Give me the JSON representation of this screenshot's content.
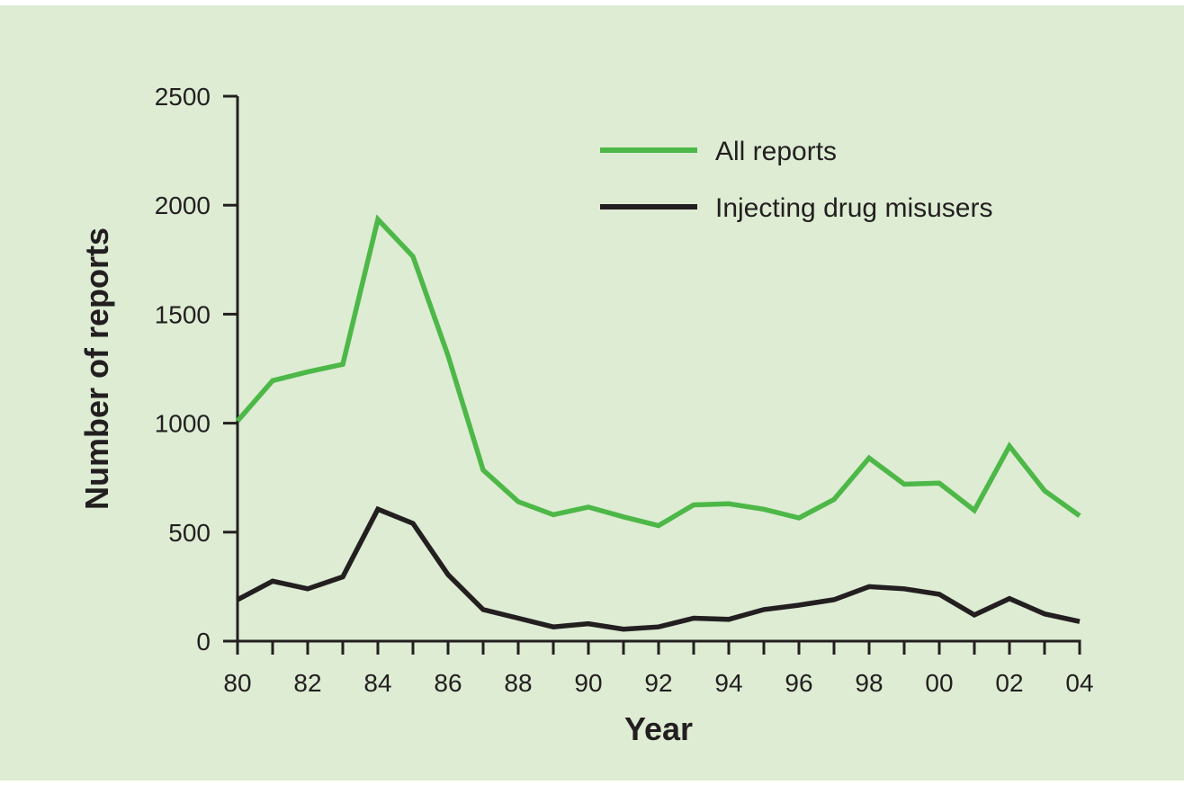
{
  "chart_data": {
    "type": "line",
    "xlabel": "Year",
    "ylabel": "Number of reports",
    "ylim": [
      0,
      2500
    ],
    "yticks": [
      0,
      500,
      1000,
      1500,
      2000,
      2500
    ],
    "xticks": [
      "80",
      "82",
      "84",
      "86",
      "88",
      "90",
      "92",
      "94",
      "96",
      "98",
      "00",
      "02",
      "04"
    ],
    "x": [
      1980,
      1981,
      1982,
      1983,
      1984,
      1985,
      1986,
      1987,
      1988,
      1989,
      1990,
      1991,
      1992,
      1993,
      1994,
      1995,
      1996,
      1997,
      1998,
      1999,
      2000,
      2001,
      2002,
      2003,
      2004
    ],
    "grid": false,
    "legend_position": "top-right",
    "series": [
      {
        "name": "All reports",
        "color": "#4db848",
        "values": [
          1010,
          1195,
          1235,
          1270,
          1935,
          1765,
          1310,
          785,
          640,
          580,
          615,
          570,
          530,
          625,
          630,
          605,
          565,
          650,
          840,
          720,
          725,
          600,
          895,
          690,
          575
        ]
      },
      {
        "name": "Injecting drug misusers",
        "color": "#231f20",
        "values": [
          190,
          275,
          240,
          295,
          605,
          540,
          305,
          145,
          105,
          65,
          80,
          55,
          65,
          105,
          100,
          145,
          165,
          190,
          250,
          240,
          215,
          120,
          195,
          125,
          90
        ]
      }
    ]
  }
}
